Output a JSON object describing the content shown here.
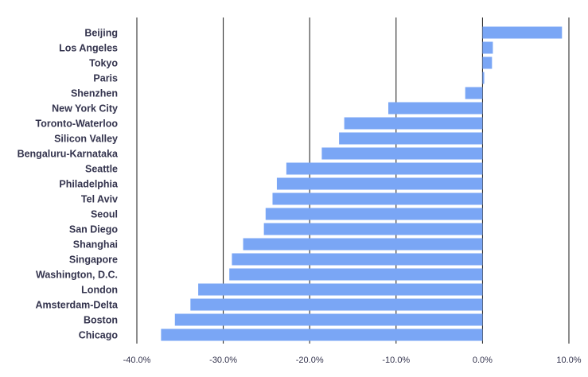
{
  "chart_data": {
    "type": "bar",
    "orientation": "horizontal",
    "categories": [
      "Beijing",
      "Los Angeles",
      "Tokyo",
      "Paris",
      "Shenzhen",
      "New York City",
      "Toronto-Waterloo",
      "Silicon Valley",
      "Bengaluru-Karnataka",
      "Seattle",
      "Philadelphia",
      "Tel Aviv",
      "Seoul",
      "San Diego",
      "Shanghai",
      "Singapore",
      "Washington, D.C.",
      "London",
      "Amsterdam-Delta",
      "Boston",
      "Chicago"
    ],
    "values": [
      9.2,
      1.2,
      1.1,
      0.2,
      -2.0,
      -10.9,
      -16.0,
      -16.6,
      -18.6,
      -22.7,
      -23.8,
      -24.3,
      -25.1,
      -25.3,
      -27.7,
      -29.0,
      -29.3,
      -32.9,
      -33.8,
      -35.6,
      -37.2
    ],
    "xlim": [
      -40,
      10
    ],
    "x_ticks": [
      -40,
      -30,
      -20,
      -10,
      0,
      10
    ],
    "x_tick_labels": [
      "-40.0%",
      "-30.0%",
      "-20.0%",
      "-10.0%",
      "0.0%",
      "10.0%"
    ],
    "grid": "vertical",
    "bar_color": "#7aa6f5",
    "title": "",
    "xlabel": "",
    "ylabel": ""
  }
}
